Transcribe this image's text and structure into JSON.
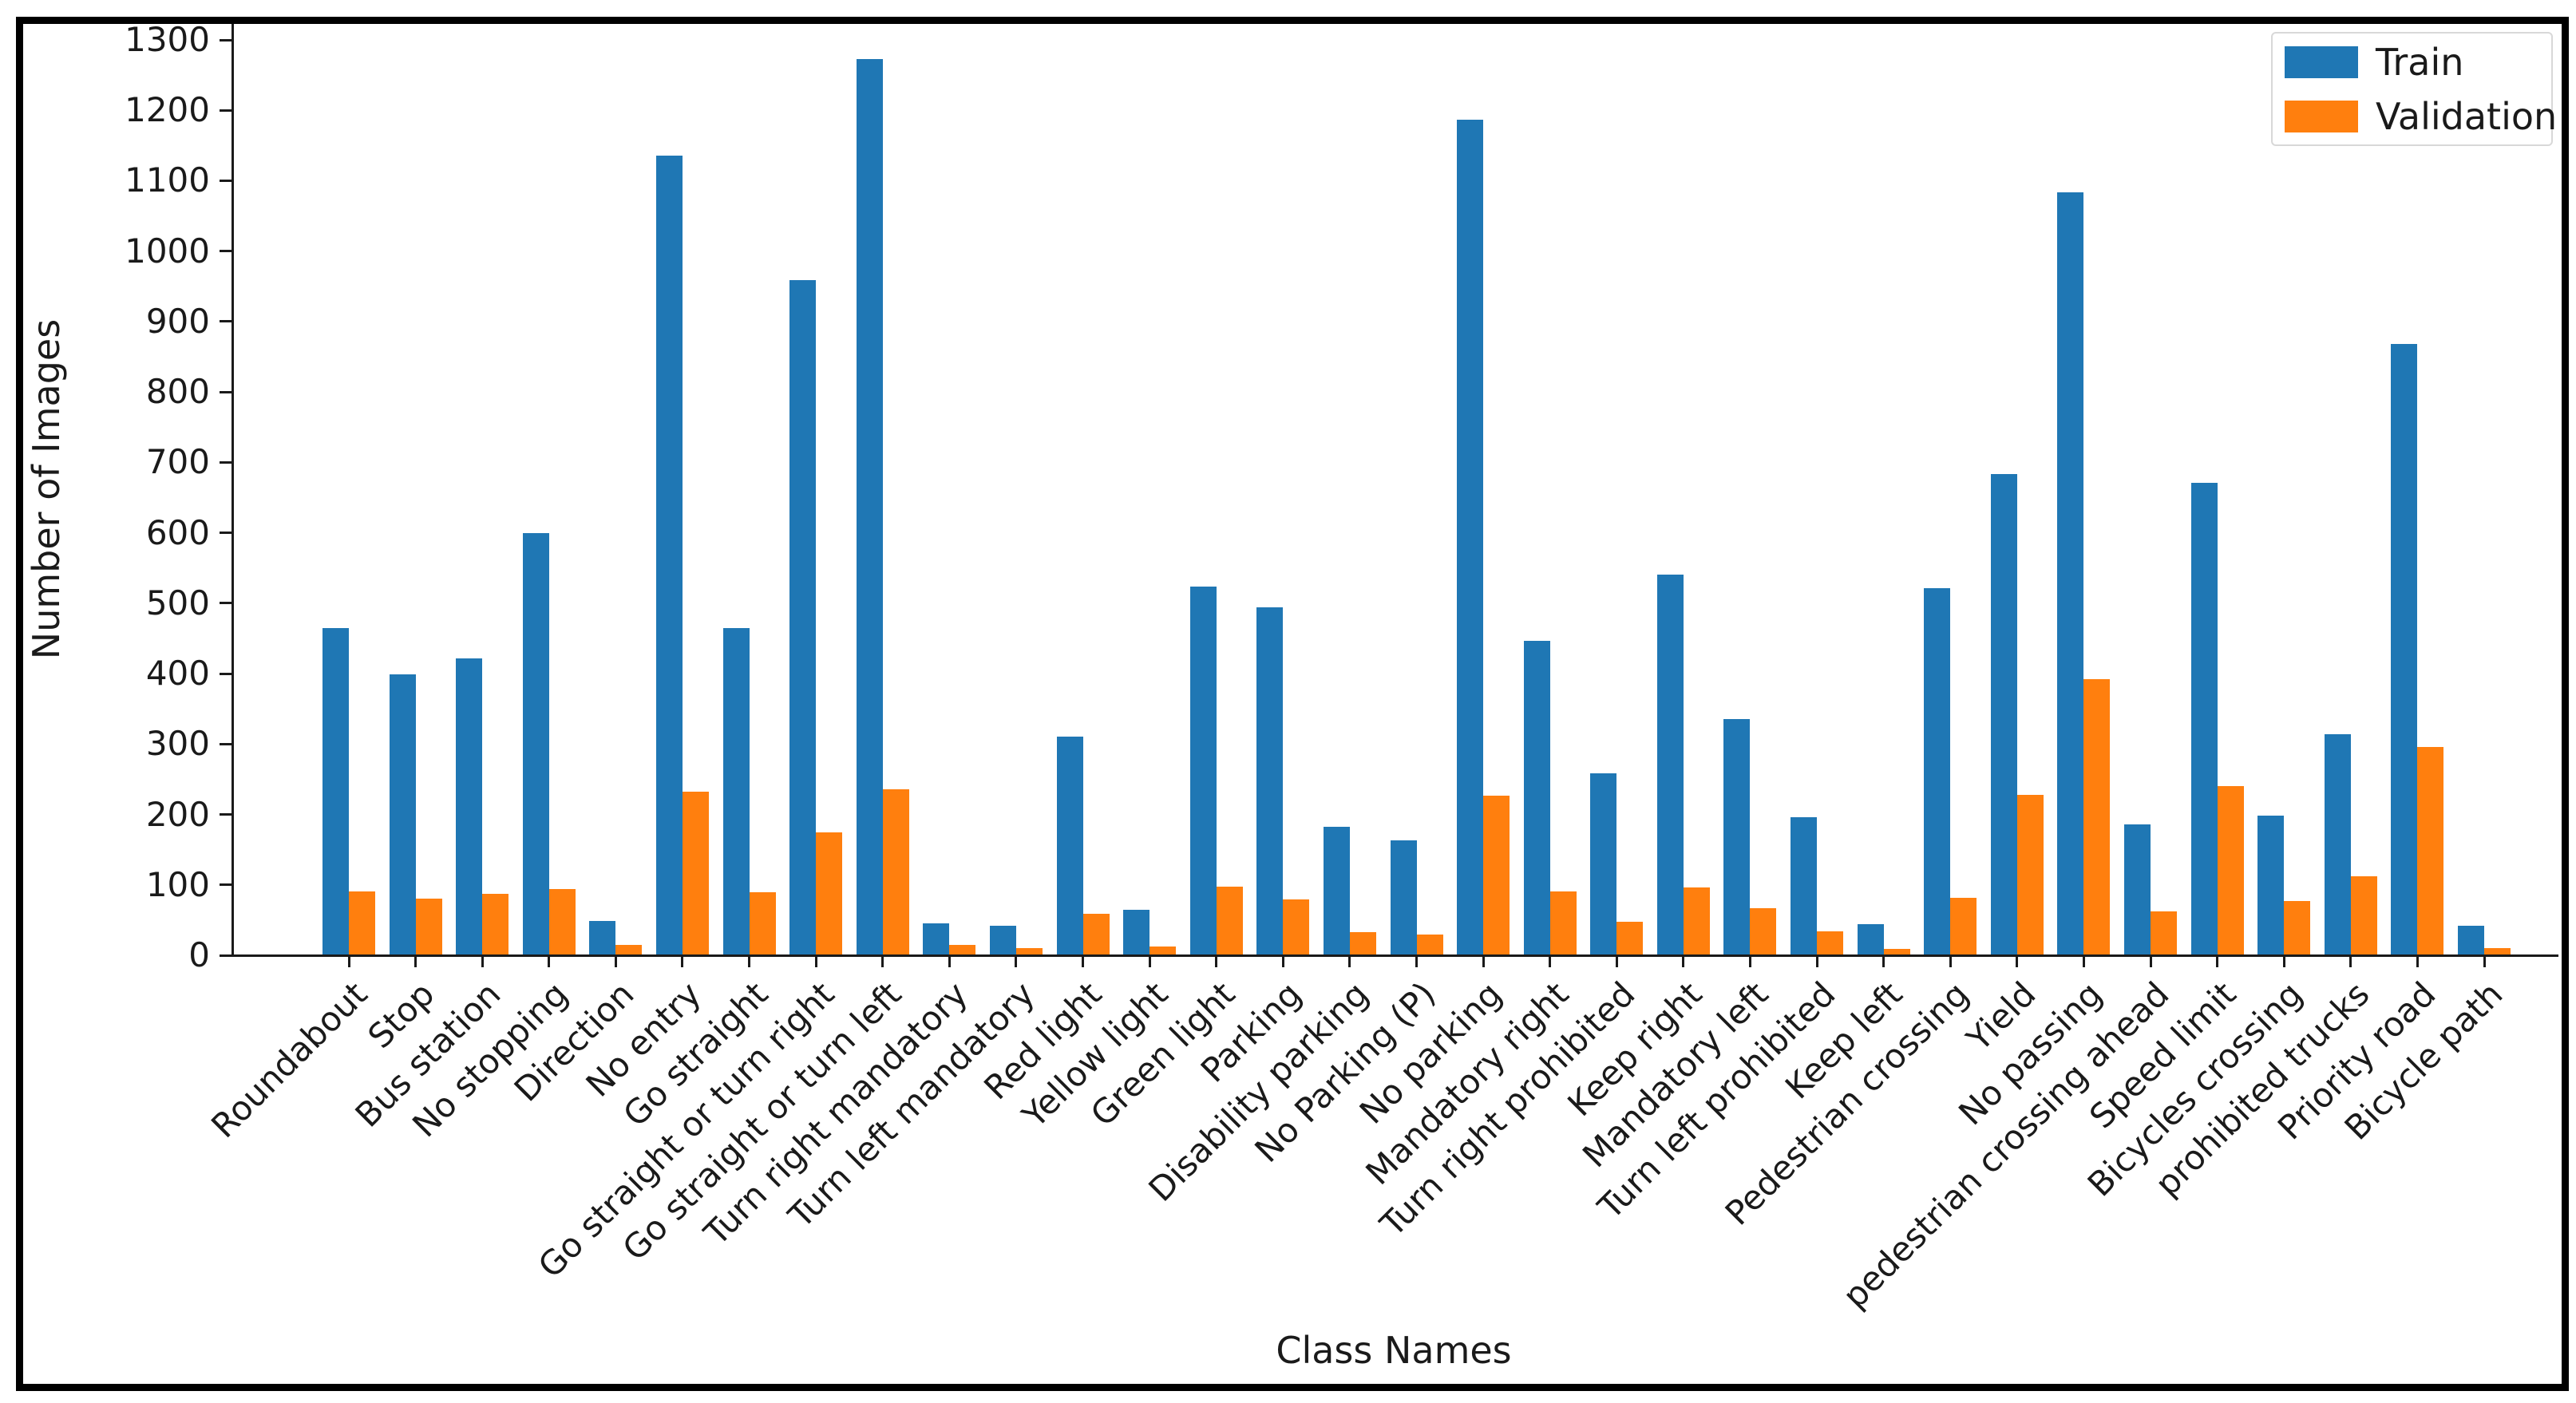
{
  "window": {
    "background": "#ffffff",
    "frame_color": "#000000"
  },
  "chart_data": {
    "type": "bar",
    "title": "",
    "xlabel": "Class Names",
    "ylabel": "Number of Images",
    "ylim": [
      0,
      1300
    ],
    "yticks": [
      0,
      100,
      200,
      300,
      400,
      500,
      600,
      700,
      800,
      900,
      1000,
      1100,
      1200,
      1300
    ],
    "grid": false,
    "legend_position": "upper right",
    "categories": [
      "Roundabout",
      "Stop",
      "Bus station",
      "No stopping",
      "Direction",
      "No entry",
      "Go straight",
      "Go straight or turn right",
      "Go straight or turn left",
      "Turn right mandatory",
      "Turn left mandatory",
      "Red light",
      "Yellow light",
      "Green light",
      "Parking",
      "Disability parking",
      "No Parking (P)",
      "No parking",
      "Mandatory right",
      "Turn right prohibited",
      "Keep right",
      "Mandatory left",
      "Turn left prohibited",
      "Keep left",
      "Pedestrian crossing",
      "Yield",
      "No passing",
      "pedestrian crossing ahead",
      "Speed limit",
      "Bicycles crossing",
      "prohibited trucks",
      "Priority road",
      "Bicycle path"
    ],
    "series": [
      {
        "name": "Train",
        "color": "#1f77b4",
        "values": [
          465,
          399,
          422,
          600,
          49,
          1136,
          465,
          959,
          1273,
          45,
          42,
          310,
          65,
          524,
          494,
          183,
          163,
          1187,
          447,
          258,
          541,
          336,
          196,
          44,
          521,
          684,
          1083,
          186,
          671,
          198,
          314,
          868,
          42
        ]
      },
      {
        "name": "Validation",
        "color": "#ff7f0e",
        "values": [
          91,
          80,
          87,
          94,
          15,
          232,
          90,
          175,
          236,
          15,
          10,
          59,
          12,
          97,
          79,
          33,
          30,
          227,
          91,
          48,
          96,
          67,
          34,
          9,
          82,
          228,
          392,
          62,
          240,
          77,
          112,
          296,
          10
        ]
      }
    ]
  }
}
